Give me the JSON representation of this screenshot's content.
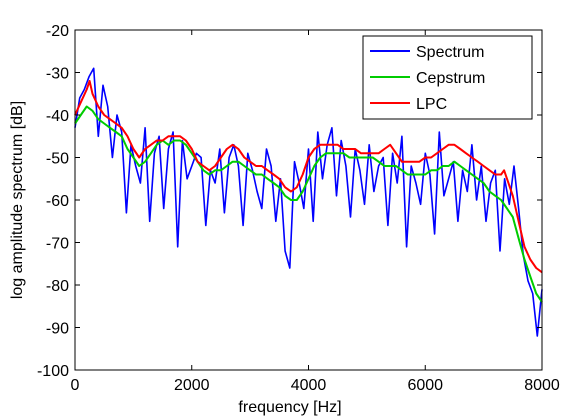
{
  "chart_data": {
    "type": "line",
    "xlabel": "frequency [Hz]",
    "ylabel": "log amplitude spectrum [dB]",
    "xlim": [
      0,
      8000
    ],
    "ylim": [
      -100,
      -20
    ],
    "xticks": [
      0,
      2000,
      4000,
      6000,
      8000
    ],
    "yticks": [
      -20,
      -30,
      -40,
      -50,
      -60,
      -70,
      -80,
      -90,
      -100
    ],
    "xtick_labels": [
      "0",
      "2000",
      "4000",
      "6000",
      "8000"
    ],
    "ytick_labels": [
      "-20",
      "-30",
      "-40",
      "-50",
      "-60",
      "-70",
      "-80",
      "-90",
      "-100"
    ],
    "grid": false,
    "legend_position": "top-right",
    "series": [
      {
        "name": "Spectrum",
        "color": "#0000ff",
        "x": [
          0,
          80,
          160,
          240,
          320,
          400,
          480,
          560,
          640,
          720,
          800,
          880,
          960,
          1040,
          1120,
          1200,
          1280,
          1360,
          1440,
          1520,
          1600,
          1680,
          1760,
          1840,
          1920,
          2000,
          2080,
          2160,
          2240,
          2320,
          2400,
          2480,
          2560,
          2640,
          2720,
          2800,
          2880,
          2960,
          3040,
          3120,
          3200,
          3280,
          3360,
          3440,
          3520,
          3600,
          3680,
          3760,
          3840,
          3920,
          4000,
          4080,
          4160,
          4240,
          4320,
          4400,
          4480,
          4560,
          4640,
          4720,
          4800,
          4880,
          4960,
          5040,
          5120,
          5200,
          5280,
          5360,
          5440,
          5520,
          5600,
          5680,
          5760,
          5840,
          5920,
          6000,
          6080,
          6160,
          6240,
          6320,
          6400,
          6480,
          6560,
          6640,
          6720,
          6800,
          6880,
          6960,
          7040,
          7120,
          7200,
          7280,
          7360,
          7440,
          7520,
          7600,
          7680,
          7760,
          7840,
          7920,
          8000
        ],
        "values": [
          -43,
          -36,
          -34,
          -31,
          -29,
          -45,
          -33,
          -38,
          -50,
          -40,
          -44,
          -63,
          -47,
          -52,
          -56,
          -43,
          -65,
          -49,
          -45,
          -62,
          -48,
          -44,
          -71,
          -46,
          -55,
          -52,
          -49,
          -50,
          -66,
          -53,
          -56,
          -48,
          -63,
          -50,
          -47,
          -52,
          -66,
          -49,
          -53,
          -58,
          -62,
          -48,
          -52,
          -65,
          -55,
          -72,
          -76,
          -51,
          -56,
          -62,
          -48,
          -65,
          -44,
          -55,
          -47,
          -43,
          -59,
          -46,
          -52,
          -64,
          -48,
          -53,
          -61,
          -47,
          -58,
          -52,
          -50,
          -66,
          -49,
          -56,
          -45,
          -71,
          -52,
          -56,
          -61,
          -49,
          -54,
          -68,
          -44,
          -59,
          -55,
          -51,
          -65,
          -53,
          -58,
          -47,
          -60,
          -52,
          -65,
          -56,
          -53,
          -72,
          -55,
          -61,
          -52,
          -62,
          -73,
          -79,
          -82,
          -92,
          -81
        ]
      },
      {
        "name": "Cepstrum",
        "color": "#00cc00",
        "x": [
          0,
          100,
          200,
          300,
          400,
          500,
          600,
          700,
          800,
          900,
          1000,
          1100,
          1200,
          1300,
          1400,
          1500,
          1600,
          1700,
          1800,
          1900,
          2000,
          2100,
          2200,
          2300,
          2400,
          2500,
          2600,
          2700,
          2800,
          2900,
          3000,
          3100,
          3200,
          3300,
          3400,
          3500,
          3600,
          3700,
          3800,
          3900,
          4000,
          4100,
          4200,
          4300,
          4400,
          4500,
          4600,
          4700,
          4800,
          4900,
          5000,
          5100,
          5200,
          5300,
          5400,
          5500,
          5600,
          5700,
          5800,
          5900,
          6000,
          6100,
          6200,
          6300,
          6400,
          6500,
          6600,
          6700,
          6800,
          6900,
          7000,
          7100,
          7200,
          7300,
          7400,
          7500,
          7600,
          7700,
          7800,
          7900,
          8000
        ],
        "values": [
          -42,
          -40,
          -38,
          -39,
          -41,
          -42,
          -43,
          -44,
          -45,
          -48,
          -50,
          -52,
          -51,
          -49,
          -47,
          -46,
          -47,
          -46,
          -46,
          -47,
          -49,
          -51,
          -53,
          -54,
          -53,
          -53,
          -52,
          -51,
          -51,
          -52,
          -53,
          -54,
          -54,
          -55,
          -56,
          -57,
          -59,
          -60,
          -60,
          -58,
          -55,
          -52,
          -50,
          -49,
          -49,
          -49,
          -49,
          -50,
          -50,
          -50,
          -50,
          -50,
          -51,
          -52,
          -52,
          -52,
          -53,
          -54,
          -54,
          -54,
          -54,
          -53,
          -53,
          -52,
          -52,
          -51,
          -52,
          -53,
          -54,
          -55,
          -56,
          -58,
          -59,
          -60,
          -62,
          -64,
          -69,
          -74,
          -78,
          -82,
          -84
        ]
      },
      {
        "name": "LPC",
        "color": "#ff0000",
        "x": [
          0,
          100,
          200,
          250,
          300,
          400,
          500,
          600,
          700,
          800,
          900,
          1000,
          1100,
          1200,
          1300,
          1400,
          1500,
          1600,
          1700,
          1800,
          1900,
          2000,
          2100,
          2200,
          2300,
          2400,
          2500,
          2600,
          2700,
          2800,
          2900,
          3000,
          3100,
          3200,
          3300,
          3400,
          3500,
          3600,
          3700,
          3800,
          3900,
          4000,
          4100,
          4200,
          4300,
          4400,
          4500,
          4600,
          4700,
          4800,
          4900,
          5000,
          5100,
          5200,
          5300,
          5400,
          5500,
          5600,
          5700,
          5800,
          5900,
          6000,
          6100,
          6200,
          6300,
          6400,
          6500,
          6600,
          6700,
          6800,
          6900,
          7000,
          7100,
          7200,
          7300,
          7350,
          7400,
          7500,
          7600,
          7700,
          7800,
          7900,
          8000
        ],
        "values": [
          -40,
          -37,
          -34,
          -32,
          -35,
          -38,
          -40,
          -41,
          -42,
          -43,
          -45,
          -48,
          -50,
          -48,
          -47,
          -46,
          -46,
          -45,
          -45,
          -45,
          -46,
          -48,
          -51,
          -52,
          -53,
          -52,
          -50,
          -48,
          -47,
          -48,
          -50,
          -51,
          -52,
          -52,
          -53,
          -54,
          -55,
          -57,
          -58,
          -57,
          -54,
          -50,
          -48,
          -47,
          -47,
          -47,
          -47,
          -48,
          -48,
          -48,
          -49,
          -49,
          -49,
          -49,
          -48,
          -47,
          -49,
          -51,
          -51,
          -51,
          -51,
          -50,
          -50,
          -49,
          -48,
          -47,
          -47,
          -48,
          -49,
          -50,
          -51,
          -52,
          -53,
          -54,
          -54,
          -53,
          -55,
          -59,
          -65,
          -71,
          -74,
          -76,
          -77
        ]
      }
    ]
  }
}
